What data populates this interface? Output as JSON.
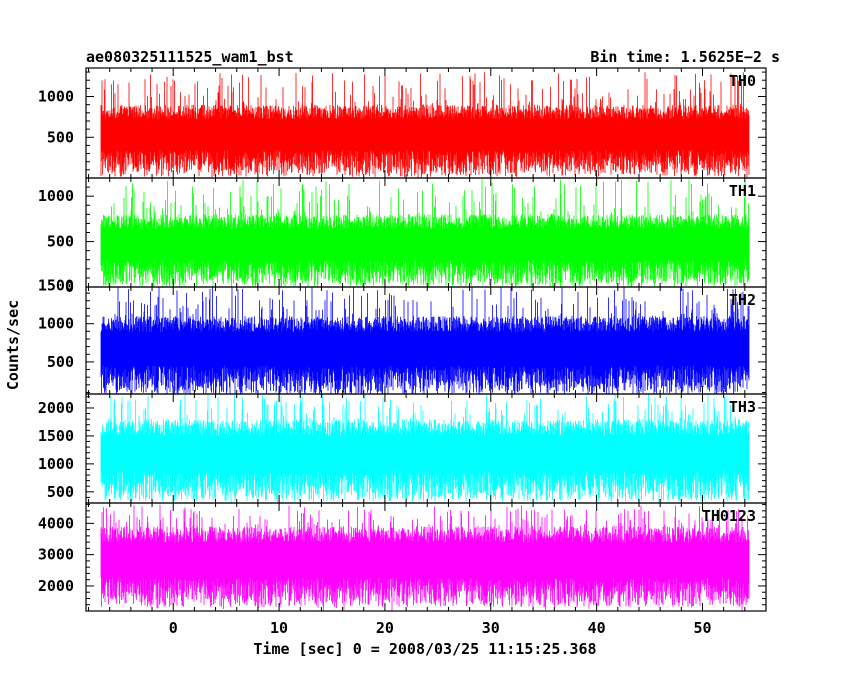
{
  "header": {
    "left_title": "ae080325111525_wam1_bst",
    "right_title": "Bin time: 1.5625E−2 s"
  },
  "y_axis_label": "Counts/sec",
  "x_axis_label": "Time [sec] 0 = 2008/03/25 11:15:25.368",
  "chart_data": [
    {
      "type": "line",
      "name": "TH0",
      "color": "#ff0000",
      "x_range": [
        -8.24,
        56.0
      ],
      "x_ticks": [
        0,
        10,
        20,
        30,
        40,
        50
      ],
      "ylim": [
        0,
        1350
      ],
      "y_ticks": [
        500,
        1000
      ],
      "typical_band": [
        180,
        900
      ],
      "max_spike": 1300
    },
    {
      "type": "line",
      "name": "TH1",
      "color": "#00ff00",
      "x_range": [
        -8.24,
        56.0
      ],
      "x_ticks": [
        0,
        10,
        20,
        30,
        40,
        50
      ],
      "ylim": [
        0,
        1200
      ],
      "y_ticks": [
        0,
        500,
        1000
      ],
      "typical_band": [
        150,
        800
      ],
      "max_spike": 1190
    },
    {
      "type": "line",
      "name": "TH2",
      "color": "#0000ff",
      "x_range": [
        -8.24,
        56.0
      ],
      "x_ticks": [
        0,
        10,
        20,
        30,
        40,
        50
      ],
      "ylim": [
        80,
        1480
      ],
      "y_ticks": [
        500,
        1000,
        1500
      ],
      "typical_band": [
        260,
        1100
      ],
      "max_spike": 1500
    },
    {
      "type": "line",
      "name": "TH3",
      "color": "#00ffff",
      "x_range": [
        -8.24,
        56.0
      ],
      "x_ticks": [
        0,
        10,
        20,
        30,
        40,
        50
      ],
      "ylim": [
        300,
        2250
      ],
      "y_ticks": [
        500,
        1000,
        1500,
        2000
      ],
      "typical_band": [
        600,
        1800
      ],
      "max_spike": 2250
    },
    {
      "type": "line",
      "name": "TH0123",
      "color": "#ff00ff",
      "x_range": [
        -8.24,
        56.0
      ],
      "x_ticks": [
        0,
        10,
        20,
        30,
        40,
        50
      ],
      "ylim": [
        1200,
        4650
      ],
      "y_ticks": [
        2000,
        3000,
        4000
      ],
      "typical_band": [
        1800,
        3900
      ],
      "max_spike": 4600
    }
  ]
}
